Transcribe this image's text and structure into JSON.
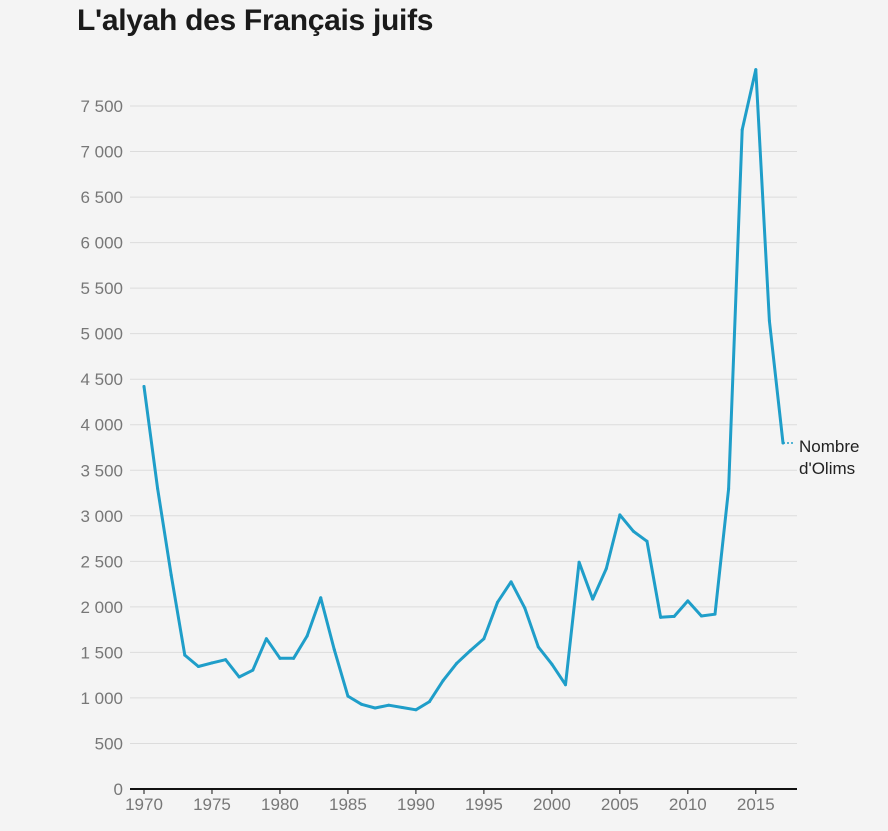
{
  "title": "L'alyah des Français juifs",
  "chart_data": {
    "type": "line",
    "title": "L'alyah des Français juifs",
    "xlabel": "",
    "ylabel": "",
    "xlim": [
      1970,
      2018
    ],
    "ylim": [
      0,
      8000
    ],
    "grid": "horizontal",
    "y_ticks": [
      0,
      500,
      1000,
      1500,
      2000,
      2500,
      3000,
      3500,
      4000,
      4500,
      5000,
      5500,
      6000,
      6500,
      7000,
      7500
    ],
    "y_tick_labels": [
      "0",
      "500",
      "1 000",
      "1 500",
      "2 000",
      "2 500",
      "3 000",
      "3 500",
      "4 000",
      "4 500",
      "5 000",
      "5 500",
      "6 000",
      "6 500",
      "7 000",
      "7 500"
    ],
    "x_ticks": [
      1970,
      1975,
      1980,
      1985,
      1990,
      1995,
      2000,
      2005,
      2010,
      2015
    ],
    "x_tick_labels": [
      "1970",
      "1975",
      "1980",
      "1985",
      "1990",
      "1995",
      "2000",
      "2005",
      "2010",
      "2015"
    ],
    "series": [
      {
        "name": "Nombre d'Olims",
        "label_lines": [
          "Nombre",
          "d'Olims"
        ],
        "color": "#1f9ec9",
        "x": [
          1970,
          1971,
          1972,
          1973,
          1974,
          1975,
          1976,
          1977,
          1978,
          1979,
          1980,
          1981,
          1982,
          1983,
          1984,
          1985,
          1986,
          1987,
          1988,
          1989,
          1990,
          1991,
          1992,
          1993,
          1994,
          1995,
          1996,
          1997,
          1998,
          1999,
          2000,
          2001,
          2002,
          2003,
          2004,
          2005,
          2006,
          2007,
          2008,
          2009,
          2010,
          2011,
          2012,
          2013,
          2014,
          2015,
          2016,
          2017
        ],
        "values": [
          4420,
          3300,
          2350,
          1470,
          1345,
          1385,
          1420,
          1230,
          1305,
          1650,
          1435,
          1435,
          1680,
          2100,
          1530,
          1020,
          930,
          890,
          920,
          895,
          870,
          960,
          1190,
          1380,
          1520,
          1650,
          2050,
          2275,
          1990,
          1560,
          1370,
          1145,
          2490,
          2085,
          2420,
          3010,
          2830,
          2720,
          1885,
          1895,
          2065,
          1900,
          1920,
          3295,
          7240,
          7900,
          5140,
          3800
        ]
      }
    ]
  }
}
